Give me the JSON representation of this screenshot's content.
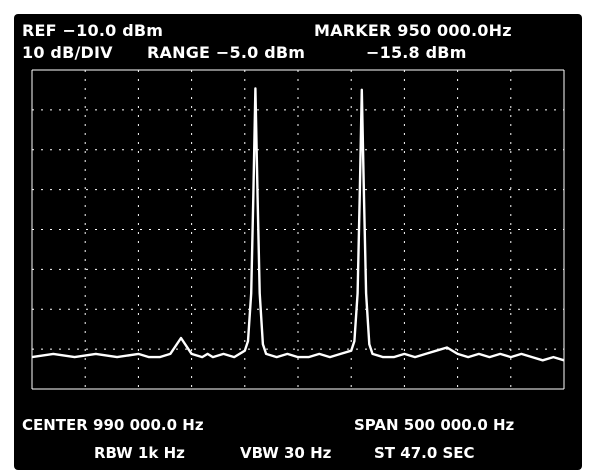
{
  "header": {
    "ref": "REF −10.0 dBm",
    "marker": "MARKER 950 000.0Hz",
    "scale": "10 dB/DIV",
    "range": "RANGE −5.0 dBm",
    "marker_level": "−15.8 dBm"
  },
  "footer": {
    "center": "CENTER 990 000.0 Hz",
    "span": "SPAN 500 000.0 Hz",
    "rbw": "RBW 1k Hz",
    "vbw": "VBW 30 Hz",
    "sweep_time": "ST 47.0 SEC"
  },
  "colors": {
    "screen_bg": "#000000",
    "trace": "#ffffff",
    "graticule": "#ffffff"
  },
  "chart_data": {
    "type": "line",
    "x_unit": "Hz",
    "y_unit": "dBm",
    "xlim": [
      740000,
      1240000
    ],
    "ylim": [
      -110,
      -10
    ],
    "grid": true,
    "series": [
      {
        "x": [
          740000,
          760000,
          780000,
          800000,
          820000,
          840000,
          850000,
          860000,
          870000,
          880000,
          890000,
          900000,
          905000,
          910000,
          920000,
          930000,
          940000,
          943000,
          946000,
          948000,
          950000,
          952000,
          954000,
          957000,
          960000,
          970000,
          980000,
          990000,
          1000000,
          1010000,
          1020000,
          1030000,
          1040000,
          1043000,
          1046000,
          1048000,
          1050000,
          1052000,
          1054000,
          1057000,
          1060000,
          1070000,
          1080000,
          1090000,
          1100000,
          1110000,
          1120000,
          1130000,
          1140000,
          1150000,
          1160000,
          1170000,
          1180000,
          1190000,
          1200000,
          1210000,
          1220000,
          1230000,
          1240000
        ],
        "y": [
          -100,
          -99,
          -100,
          -99,
          -100,
          -99,
          -100,
          -100,
          -99,
          -94,
          -99,
          -100,
          -99,
          -100,
          -99,
          -100,
          -98,
          -95,
          -80,
          -50,
          -15.8,
          -50,
          -80,
          -96,
          -99,
          -100,
          -99,
          -100,
          -100,
          -99,
          -100,
          -99,
          -98,
          -95,
          -80,
          -50,
          -16.2,
          -50,
          -80,
          -96,
          -99,
          -100,
          -100,
          -99,
          -100,
          -99,
          -98,
          -97,
          -99,
          -100,
          -99,
          -100,
          -99,
          -100,
          -99,
          -100,
          -101,
          -100,
          -101
        ]
      }
    ]
  }
}
